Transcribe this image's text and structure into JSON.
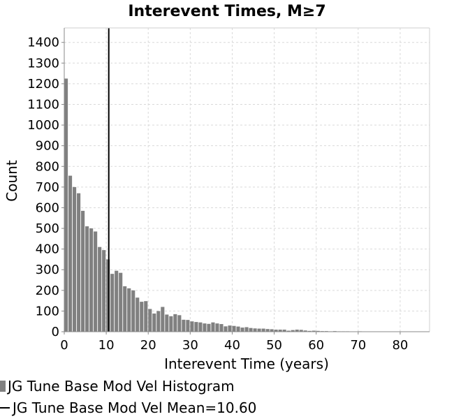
{
  "chart_data": {
    "type": "bar",
    "title": "Interevent Times, M≥7",
    "xlabel": "Interevent Time (years)",
    "ylabel": "Count",
    "xlim": [
      0,
      87
    ],
    "ylim": [
      0,
      1470
    ],
    "xticks": [
      0,
      10,
      20,
      30,
      40,
      50,
      60,
      70,
      80
    ],
    "yticks": [
      0,
      100,
      200,
      300,
      400,
      500,
      600,
      700,
      800,
      900,
      1000,
      1100,
      1200,
      1300,
      1400
    ],
    "grid": true,
    "bin_width": 1,
    "bar_color": "#808080",
    "series": [
      {
        "name": "JG Tune Base Mod Vel Histogram",
        "x": [
          0.5,
          1.5,
          2.5,
          3.5,
          4.5,
          5.5,
          6.5,
          7.5,
          8.5,
          9.5,
          10.5,
          11.5,
          12.5,
          13.5,
          14.5,
          15.5,
          16.5,
          17.5,
          18.5,
          19.5,
          20.5,
          21.5,
          22.5,
          23.5,
          24.5,
          25.5,
          26.5,
          27.5,
          28.5,
          29.5,
          30.5,
          31.5,
          32.5,
          33.5,
          34.5,
          35.5,
          36.5,
          37.5,
          38.5,
          39.5,
          40.5,
          41.5,
          42.5,
          43.5,
          44.5,
          45.5,
          46.5,
          47.5,
          48.5,
          49.5,
          50.5,
          51.5,
          52.5,
          53.5,
          54.5,
          55.5,
          56.5,
          57.5,
          58.5,
          59.5,
          60.5,
          61.5,
          62.5,
          63.5,
          64.5,
          65.5,
          66.5,
          67.5,
          68.5,
          69.5,
          70.5,
          71.5,
          72.5,
          73.5,
          74.5,
          75.5,
          76.5,
          77.5,
          78.5,
          79.5,
          80.5,
          81.5,
          82.5,
          83.5,
          84.5,
          85.5,
          86.5
        ],
        "values": [
          1225,
          755,
          700,
          670,
          585,
          510,
          500,
          485,
          410,
          395,
          350,
          280,
          295,
          285,
          220,
          210,
          200,
          165,
          145,
          148,
          110,
          88,
          100,
          120,
          83,
          75,
          85,
          80,
          58,
          57,
          50,
          47,
          45,
          40,
          38,
          45,
          40,
          37,
          26,
          30,
          28,
          25,
          20,
          22,
          18,
          16,
          15,
          15,
          13,
          12,
          10,
          10,
          10,
          5,
          8,
          10,
          9,
          6,
          4,
          5,
          4,
          3,
          3,
          2,
          3,
          2,
          2,
          2,
          1,
          1,
          2,
          1,
          1,
          0,
          1,
          1,
          1,
          0,
          0,
          0,
          1,
          0,
          0,
          1,
          0,
          1,
          0
        ]
      }
    ],
    "mean_line": {
      "name": "JG Tune Base Mod Vel Mean=10.60",
      "x": 10.6,
      "color": "#000000"
    }
  },
  "legend": [
    {
      "label": "JG Tune Base Mod Vel Histogram",
      "kind": "bar"
    },
    {
      "label": "JG Tune Base Mod Vel Mean=10.60",
      "kind": "line"
    }
  ]
}
